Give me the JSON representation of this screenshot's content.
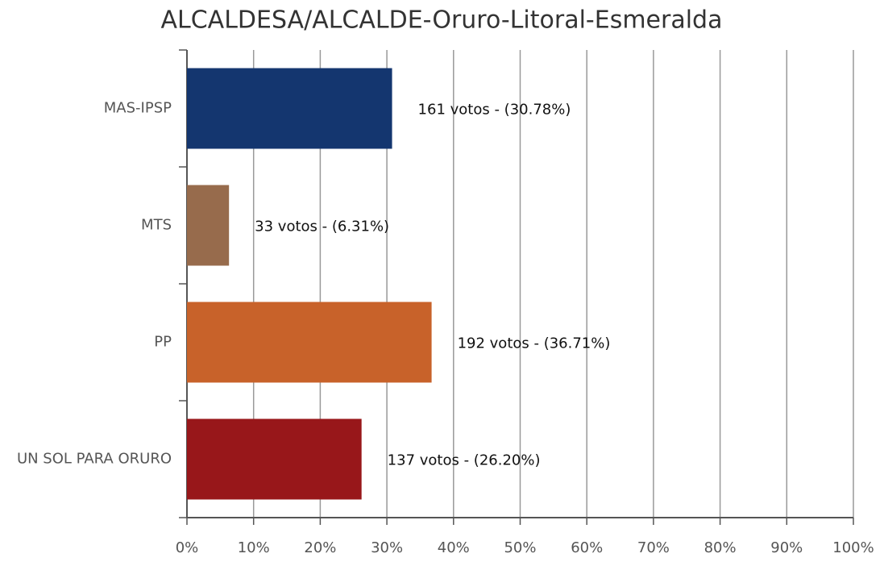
{
  "chart_data": {
    "type": "bar",
    "orientation": "horizontal",
    "title": "ALCALDESA/ALCALDE-Oruro-Litoral-Esmeralda",
    "categories": [
      "MAS-IPSP",
      "MTS",
      "PP",
      "UN SOL PARA ORURO"
    ],
    "values": [
      30.78,
      6.31,
      36.71,
      26.2
    ],
    "value_labels": [
      "161 votos - (30.78%)",
      "33 votos - (6.31%)",
      "192 votos - (36.71%)",
      "137 votos - (26.20%)"
    ],
    "colors": [
      "#14366f",
      "#976b4c",
      "#c8622a",
      "#98171a"
    ],
    "xlim": [
      0,
      100
    ],
    "xticks": [
      {
        "value": 0,
        "label": "0%"
      },
      {
        "value": 10,
        "label": "10%"
      },
      {
        "value": 20,
        "label": "20%"
      },
      {
        "value": 30,
        "label": "30%"
      },
      {
        "value": 40,
        "label": "40%"
      },
      {
        "value": 50,
        "label": "50%"
      },
      {
        "value": 60,
        "label": "60%"
      },
      {
        "value": 70,
        "label": "70%"
      },
      {
        "value": 80,
        "label": "80%"
      },
      {
        "value": 90,
        "label": "90%"
      },
      {
        "value": 100,
        "label": "100%"
      }
    ],
    "grid": true
  }
}
